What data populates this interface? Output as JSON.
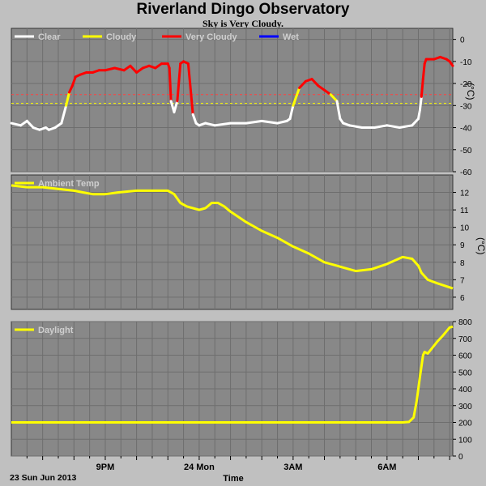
{
  "header": {
    "title": "Riverland Dingo Observatory",
    "subtitle": "Sky is Very Cloudy."
  },
  "colors": {
    "background": "#c0c0c0",
    "plot_bg": "#888888",
    "grid": "#6e6e6e",
    "clear": "#ffffff",
    "cloudy": "#ffff00",
    "very_cloudy": "#ff0000",
    "wet": "#0000ff",
    "threshold_very_cloudy": "#ff4040",
    "threshold_cloudy": "#ffff00"
  },
  "x_axis": {
    "label": "Time",
    "date_label": "23 Sun Jun 2013",
    "ticks": [
      {
        "t": 3.0,
        "label": "9PM"
      },
      {
        "t": 6.0,
        "label": "24 Mon"
      },
      {
        "t": 9.0,
        "label": "3AM"
      },
      {
        "t": 12.0,
        "label": "6AM"
      }
    ]
  },
  "chart_data": [
    {
      "id": "sky",
      "type": "line",
      "ylabel": "(°C)",
      "ylim": [
        -60,
        5
      ],
      "yticks": [
        0,
        -10,
        -20,
        -30,
        -40,
        -50,
        -60
      ],
      "grid": true,
      "legend_placement": "top-left",
      "legend": [
        {
          "name": "Clear",
          "color": "#ffffff"
        },
        {
          "name": "Cloudy",
          "color": "#ffff00"
        },
        {
          "name": "Very Cloudy",
          "color": "#ff0000"
        },
        {
          "name": "Wet",
          "color": "#0000ff"
        }
      ],
      "thresholds": [
        {
          "value": -25,
          "color": "#ff4040"
        },
        {
          "value": -29,
          "color": "#ffff00"
        }
      ],
      "x": [
        0.0,
        0.3,
        0.5,
        0.7,
        0.9,
        1.1,
        1.2,
        1.4,
        1.6,
        1.75,
        1.85,
        1.95,
        2.05,
        2.2,
        2.4,
        2.6,
        2.8,
        3.0,
        3.3,
        3.6,
        3.8,
        4.0,
        4.2,
        4.4,
        4.6,
        4.8,
        4.9,
        5.0,
        5.05,
        5.1,
        5.2,
        5.3,
        5.4,
        5.5,
        5.65,
        5.8,
        5.85,
        5.9,
        6.0,
        6.2,
        6.5,
        7.0,
        7.5,
        8.0,
        8.5,
        8.8,
        8.9,
        9.0,
        9.2,
        9.4,
        9.6,
        9.8,
        10.0,
        10.2,
        10.4,
        10.5,
        10.6,
        10.8,
        11.2,
        11.6,
        12.0,
        12.4,
        12.8,
        13.0,
        13.05,
        13.1,
        13.15,
        13.2,
        13.25,
        13.3,
        13.5,
        13.7,
        13.9,
        14.0,
        14.1
      ],
      "y": [
        -38,
        -39,
        -37,
        -40,
        -41,
        -40,
        -41,
        -40,
        -38,
        -30,
        -24,
        -21,
        -17,
        -16,
        -15,
        -15,
        -14,
        -14,
        -13,
        -14,
        -12,
        -15,
        -13,
        -12,
        -13,
        -11,
        -11,
        -11,
        -13,
        -28,
        -33,
        -28,
        -11,
        -10,
        -11,
        -34,
        -36,
        -38,
        -39,
        -38,
        -39,
        -38,
        -38,
        -37,
        -38,
        -37,
        -36,
        -30,
        -22,
        -19,
        -18,
        -21,
        -23,
        -25,
        -28,
        -36,
        -38,
        -39,
        -40,
        -40,
        -39,
        -40,
        -39,
        -36,
        -32,
        -26,
        -18,
        -11,
        -9,
        -9,
        -9,
        -8,
        -9,
        -10,
        -12
      ]
    },
    {
      "id": "ambient",
      "type": "line",
      "ylabel": "(°C)",
      "ylim": [
        5.3,
        13
      ],
      "yticks": [
        12,
        11,
        10,
        9,
        8,
        7,
        6
      ],
      "grid": true,
      "legend_placement": "top-left",
      "legend": [
        {
          "name": "Ambient Temp",
          "color": "#ffff00"
        }
      ],
      "x": [
        0.0,
        0.5,
        1.0,
        1.5,
        2.0,
        2.3,
        2.6,
        3.0,
        3.4,
        4.0,
        4.5,
        5.0,
        5.2,
        5.4,
        5.6,
        5.8,
        6.0,
        6.2,
        6.4,
        6.6,
        6.8,
        7.0,
        7.5,
        8.0,
        8.5,
        9.0,
        9.5,
        9.8,
        10.0,
        10.2,
        10.4,
        10.6,
        10.8,
        11.0,
        11.5,
        12.0,
        12.5,
        12.8,
        13.0,
        13.1,
        13.3,
        13.6,
        14.1
      ],
      "y": [
        12.4,
        12.3,
        12.3,
        12.2,
        12.1,
        12.0,
        11.9,
        11.9,
        12.0,
        12.1,
        12.1,
        12.1,
        11.9,
        11.4,
        11.2,
        11.1,
        11.0,
        11.1,
        11.4,
        11.4,
        11.2,
        10.9,
        10.3,
        9.8,
        9.4,
        8.9,
        8.5,
        8.2,
        8.0,
        7.9,
        7.8,
        7.7,
        7.6,
        7.5,
        7.6,
        7.9,
        8.3,
        8.2,
        7.8,
        7.4,
        7.0,
        6.8,
        6.5
      ]
    },
    {
      "id": "daylight",
      "type": "line",
      "ylabel": "",
      "ylim": [
        0,
        800
      ],
      "yticks": [
        800,
        700,
        600,
        500,
        400,
        300,
        200,
        100,
        0
      ],
      "grid": true,
      "legend_placement": "top-left",
      "legend": [
        {
          "name": "Daylight",
          "color": "#ffff00"
        }
      ],
      "x": [
        0.0,
        1.0,
        2.0,
        3.0,
        4.0,
        5.0,
        6.0,
        7.0,
        8.0,
        9.0,
        10.0,
        11.0,
        12.0,
        12.5,
        12.7,
        12.85,
        12.95,
        13.05,
        13.15,
        13.2,
        13.3,
        13.45,
        13.6,
        13.8,
        14.0,
        14.1
      ],
      "y": [
        200,
        200,
        200,
        200,
        200,
        200,
        200,
        200,
        200,
        200,
        200,
        200,
        200,
        200,
        203,
        230,
        330,
        470,
        600,
        620,
        610,
        645,
        680,
        720,
        765,
        770
      ]
    }
  ]
}
